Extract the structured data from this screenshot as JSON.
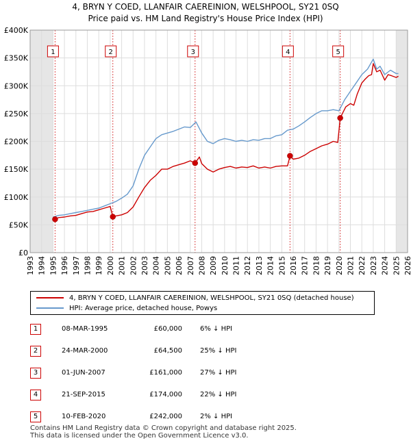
{
  "title_line1": "4, BRYN Y COED, LLANFAIR CAEREINION, WELSHPOOL, SY21 0SQ",
  "title_line2": "Price paid vs. HM Land Registry's House Price Index (HPI)",
  "chart_data": {
    "type": "line",
    "title": "4, BRYN Y COED, LLANFAIR CAEREINION, WELSHPOOL, SY21 0SQ — Price paid vs. HM Land Registry's House Price Index (HPI)",
    "xlabel": "",
    "ylabel": "",
    "xlim": [
      1993,
      2026
    ],
    "ylim": [
      0,
      400000
    ],
    "x_ticks": [
      1993,
      1994,
      1995,
      1996,
      1997,
      1998,
      1999,
      2000,
      2001,
      2002,
      2003,
      2004,
      2005,
      2006,
      2007,
      2008,
      2009,
      2010,
      2011,
      2012,
      2013,
      2014,
      2015,
      2016,
      2017,
      2018,
      2019,
      2020,
      2021,
      2022,
      2023,
      2024,
      2025,
      2026
    ],
    "y_ticks": [
      0,
      50000,
      100000,
      150000,
      200000,
      250000,
      300000,
      350000,
      400000
    ],
    "y_tick_labels": [
      "£0",
      "£50K",
      "£100K",
      "£150K",
      "£200K",
      "£250K",
      "£300K",
      "£350K",
      "£400K"
    ],
    "grid": true,
    "series": [
      {
        "name": "4, BRYN Y COED, LLANFAIR CAEREINION, WELSHPOOL, SY21 0SQ (detached house)",
        "color": "#cc0000",
        "x": [
          1995.18,
          1995.5,
          1996,
          1996.5,
          1997,
          1997.5,
          1998,
          1998.5,
          1999,
          1999.5,
          2000.0,
          2000.23,
          2000.5,
          2001,
          2001.5,
          2002,
          2002.5,
          2003,
          2003.5,
          2004,
          2004.5,
          2005,
          2005.5,
          2006,
          2006.5,
          2007,
          2007.42,
          2007.8,
          2008,
          2008.5,
          2009,
          2009.5,
          2010,
          2010.5,
          2011,
          2011.5,
          2012,
          2012.5,
          2013,
          2013.5,
          2014,
          2014.5,
          2015,
          2015.5,
          2015.72,
          2016,
          2016.5,
          2017,
          2017.5,
          2018,
          2018.5,
          2019,
          2019.5,
          2019.9,
          2020.11,
          2020.3,
          2020.6,
          2021,
          2021.3,
          2021.6,
          2022,
          2022.3,
          2022.6,
          2022.85,
          2023,
          2023.3,
          2023.6,
          2024,
          2024.3,
          2024.6,
          2025,
          2025.2
        ],
        "values": [
          60000,
          63000,
          64000,
          66000,
          67000,
          70000,
          73000,
          74000,
          77000,
          80000,
          83000,
          64500,
          66000,
          68000,
          72000,
          82000,
          100000,
          117000,
          130000,
          139000,
          150000,
          150000,
          155000,
          158000,
          161000,
          165000,
          161000,
          172000,
          160000,
          150000,
          145000,
          150000,
          153000,
          155000,
          152000,
          154000,
          153000,
          156000,
          152000,
          154000,
          152000,
          155000,
          156000,
          156000,
          174000,
          168000,
          170000,
          175000,
          182000,
          187000,
          192000,
          195000,
          200000,
          198000,
          242000,
          250000,
          262000,
          268000,
          265000,
          285000,
          305000,
          312000,
          318000,
          320000,
          340000,
          325000,
          328000,
          310000,
          320000,
          318000,
          315000,
          317000
        ]
      },
      {
        "name": "HPI: Average price, detached house, Powys",
        "color": "#6699cc",
        "x": [
          1995.0,
          1995.5,
          1996,
          1996.5,
          1997,
          1997.5,
          1998,
          1998.5,
          1999,
          1999.5,
          2000,
          2000.5,
          2001,
          2001.5,
          2002,
          2002.5,
          2003,
          2003.5,
          2004,
          2004.5,
          2005,
          2005.5,
          2006,
          2006.5,
          2007,
          2007.5,
          2008,
          2008.5,
          2009,
          2009.5,
          2010,
          2010.5,
          2011,
          2011.5,
          2012,
          2012.5,
          2013,
          2013.5,
          2014,
          2014.5,
          2015,
          2015.5,
          2016,
          2016.5,
          2017,
          2017.5,
          2018,
          2018.5,
          2019,
          2019.5,
          2020,
          2020.5,
          2021,
          2021.5,
          2022,
          2022.5,
          2023,
          2023.3,
          2023.6,
          2024,
          2024.5,
          2025,
          2025.2
        ],
        "values": [
          64000,
          67000,
          68000,
          70000,
          72000,
          74000,
          76000,
          78000,
          80000,
          84000,
          88000,
          92000,
          98000,
          105000,
          120000,
          150000,
          175000,
          190000,
          205000,
          212000,
          215000,
          218000,
          222000,
          226000,
          225000,
          235000,
          215000,
          200000,
          196000,
          202000,
          205000,
          203000,
          200000,
          202000,
          200000,
          203000,
          202000,
          205000,
          205000,
          210000,
          212000,
          220000,
          222000,
          228000,
          235000,
          243000,
          250000,
          255000,
          255000,
          257000,
          255000,
          275000,
          290000,
          305000,
          320000,
          330000,
          348000,
          330000,
          335000,
          320000,
          328000,
          322000,
          322000
        ]
      }
    ],
    "sales": [
      {
        "marker": "1",
        "x": 1995.18,
        "value": 60000
      },
      {
        "marker": "2",
        "x": 2000.23,
        "value": 64500
      },
      {
        "marker": "3",
        "x": 2007.42,
        "value": 161000
      },
      {
        "marker": "4",
        "x": 2015.72,
        "value": 174000
      },
      {
        "marker": "5",
        "x": 2020.11,
        "value": 242000
      }
    ],
    "shaded_ranges": [
      [
        1993,
        1995.0
      ],
      [
        2025.0,
        2026
      ]
    ]
  },
  "legend": {
    "property_label": "4, BRYN Y COED, LLANFAIR CAEREINION, WELSHPOOL, SY21 0SQ (detached house)",
    "hpi_label": "HPI: Average price, detached house, Powys",
    "property_color": "#cc0000",
    "hpi_color": "#6699cc"
  },
  "sales_table": [
    {
      "marker": "1",
      "date": "08-MAR-1995",
      "price": "£60,000",
      "hpi": "6% ↓ HPI"
    },
    {
      "marker": "2",
      "date": "24-MAR-2000",
      "price": "£64,500",
      "hpi": "25% ↓ HPI"
    },
    {
      "marker": "3",
      "date": "01-JUN-2007",
      "price": "£161,000",
      "hpi": "27% ↓ HPI"
    },
    {
      "marker": "4",
      "date": "21-SEP-2015",
      "price": "£174,000",
      "hpi": "22% ↓ HPI"
    },
    {
      "marker": "5",
      "date": "10-FEB-2020",
      "price": "£242,000",
      "hpi": "2% ↓ HPI"
    }
  ],
  "footer_line1": "Contains HM Land Registry data © Crown copyright and database right 2025.",
  "footer_line2": "This data is licensed under the Open Government Licence v3.0."
}
